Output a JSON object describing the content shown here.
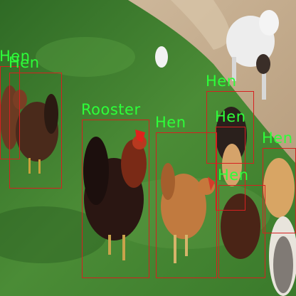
{
  "photo": {
    "subject": "chickens-on-grass",
    "box_color": "#d62020",
    "label_color": "#2dff3a"
  },
  "detections": [
    {
      "label": "Hen"
    },
    {
      "label": "Hen"
    },
    {
      "label": "Rooster"
    },
    {
      "label": "Hen"
    },
    {
      "label": "Hen"
    },
    {
      "label": "Hen"
    },
    {
      "label": "Hen"
    },
    {
      "label": "Hen"
    }
  ]
}
